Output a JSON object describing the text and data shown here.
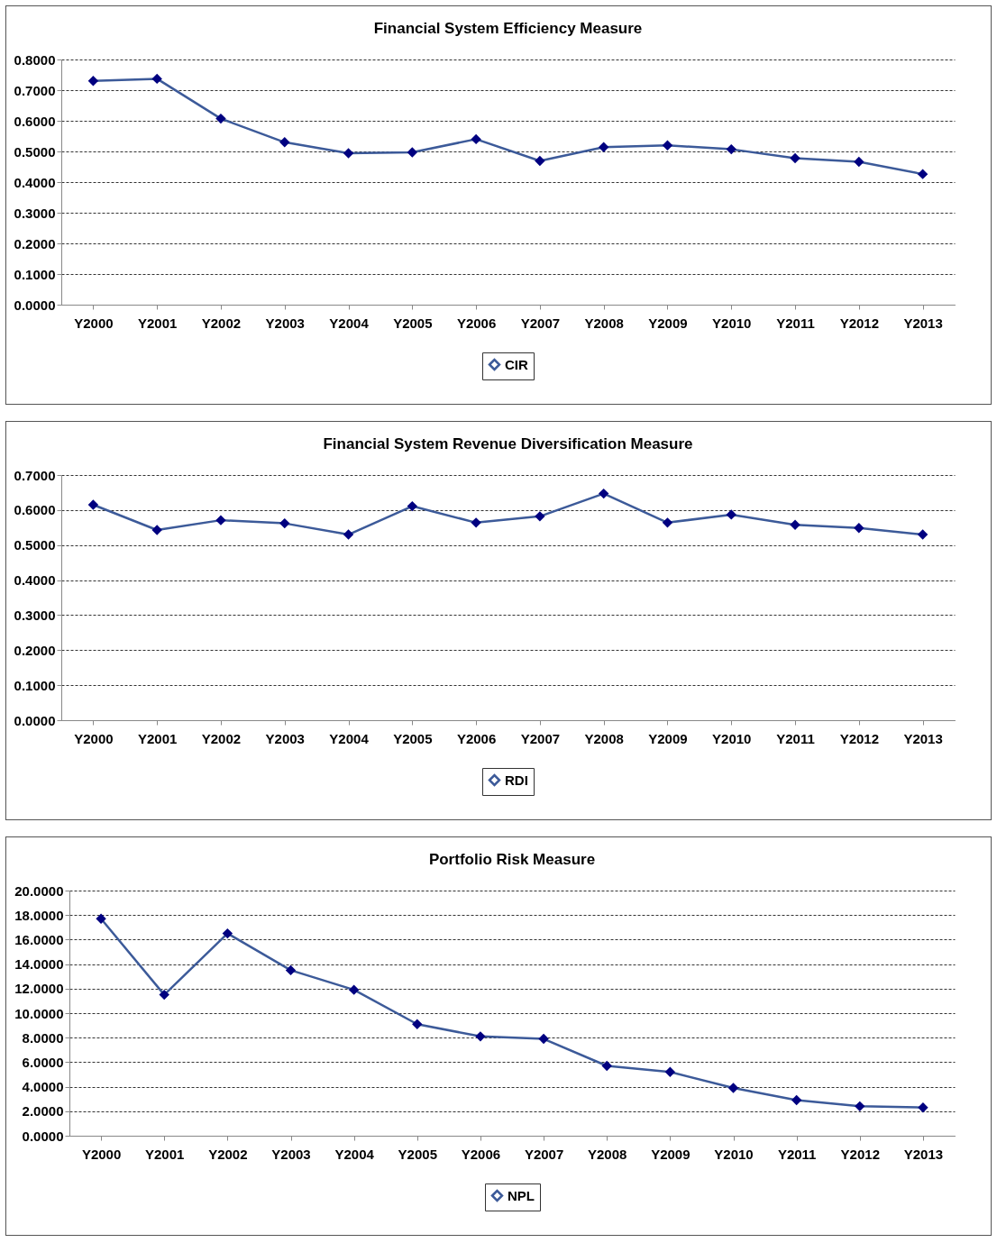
{
  "chart_data": [
    {
      "type": "line",
      "title": "Financial  System Efficiency Measure",
      "categories": [
        "Y2000",
        "Y2001",
        "Y2002",
        "Y2003",
        "Y2004",
        "Y2005",
        "Y2006",
        "Y2007",
        "Y2008",
        "Y2009",
        "Y2010",
        "Y2011",
        "Y2012",
        "Y2013"
      ],
      "series": [
        {
          "name": "CIR",
          "color": "#3c5a99",
          "values": [
            0.73,
            0.737,
            0.607,
            0.53,
            0.494,
            0.497,
            0.54,
            0.469,
            0.514,
            0.52,
            0.507,
            0.478,
            0.466,
            0.426
          ]
        }
      ],
      "ylim": [
        0,
        0.8
      ],
      "yticks": [
        {
          "value": 0,
          "label": "0.0000"
        },
        {
          "value": 0.1,
          "label": "0.1000"
        },
        {
          "value": 0.2,
          "label": "0.2000"
        },
        {
          "value": 0.3,
          "label": "0.3000"
        },
        {
          "value": 0.4,
          "label": "0.4000"
        },
        {
          "value": 0.5,
          "label": "0.5000"
        },
        {
          "value": 0.6,
          "label": "0.6000"
        },
        {
          "value": 0.7,
          "label": "0.7000"
        },
        {
          "value": 0.8,
          "label": "0.8000"
        }
      ],
      "grid": "y",
      "legend": "bottom",
      "marker": "diamond",
      "line_style": "solid"
    },
    {
      "type": "line",
      "title": "Financial  System Revenue Diversification Measure",
      "categories": [
        "Y2000",
        "Y2001",
        "Y2002",
        "Y2003",
        "Y2004",
        "Y2005",
        "Y2006",
        "Y2007",
        "Y2008",
        "Y2009",
        "Y2010",
        "Y2011",
        "Y2012",
        "Y2013"
      ],
      "series": [
        {
          "name": "RDI",
          "color": "#3c5a99",
          "values": [
            0.615,
            0.543,
            0.571,
            0.562,
            0.53,
            0.611,
            0.564,
            0.582,
            0.647,
            0.564,
            0.587,
            0.558,
            0.549,
            0.53
          ]
        }
      ],
      "ylim": [
        0,
        0.7
      ],
      "yticks": [
        {
          "value": 0,
          "label": "0.0000"
        },
        {
          "value": 0.1,
          "label": "0.1000"
        },
        {
          "value": 0.2,
          "label": "0.2000"
        },
        {
          "value": 0.3,
          "label": "0.3000"
        },
        {
          "value": 0.4,
          "label": "0.4000"
        },
        {
          "value": 0.5,
          "label": "0.5000"
        },
        {
          "value": 0.6,
          "label": "0.6000"
        },
        {
          "value": 0.7,
          "label": "0.7000"
        }
      ],
      "grid": "y",
      "legend": "bottom",
      "marker": "diamond",
      "line_style": "solid"
    },
    {
      "type": "line",
      "title": "Portfolio Risk Measure",
      "categories": [
        "Y2000",
        "Y2001",
        "Y2002",
        "Y2003",
        "Y2004",
        "Y2005",
        "Y2006",
        "Y2007",
        "Y2008",
        "Y2009",
        "Y2010",
        "Y2011",
        "Y2012",
        "Y2013"
      ],
      "series": [
        {
          "name": "NPL",
          "color": "#3c5a99",
          "values": [
            17.7,
            11.5,
            16.5,
            13.5,
            11.9,
            9.1,
            8.1,
            7.9,
            5.7,
            5.2,
            3.9,
            2.9,
            2.4,
            2.3
          ]
        }
      ],
      "ylim": [
        0,
        20
      ],
      "yticks": [
        {
          "value": 0,
          "label": "0.0000"
        },
        {
          "value": 2,
          "label": "2.0000"
        },
        {
          "value": 4,
          "label": "4.0000"
        },
        {
          "value": 6,
          "label": "6.0000"
        },
        {
          "value": 8,
          "label": "8.0000"
        },
        {
          "value": 10,
          "label": "10.0000"
        },
        {
          "value": 12,
          "label": "12.0000"
        },
        {
          "value": 14,
          "label": "14.0000"
        },
        {
          "value": 16,
          "label": "16.0000"
        },
        {
          "value": 18,
          "label": "18.0000"
        },
        {
          "value": 20,
          "label": "20.0000"
        }
      ],
      "grid": "y",
      "legend": "bottom",
      "marker": "diamond",
      "line_style": "solid"
    }
  ]
}
